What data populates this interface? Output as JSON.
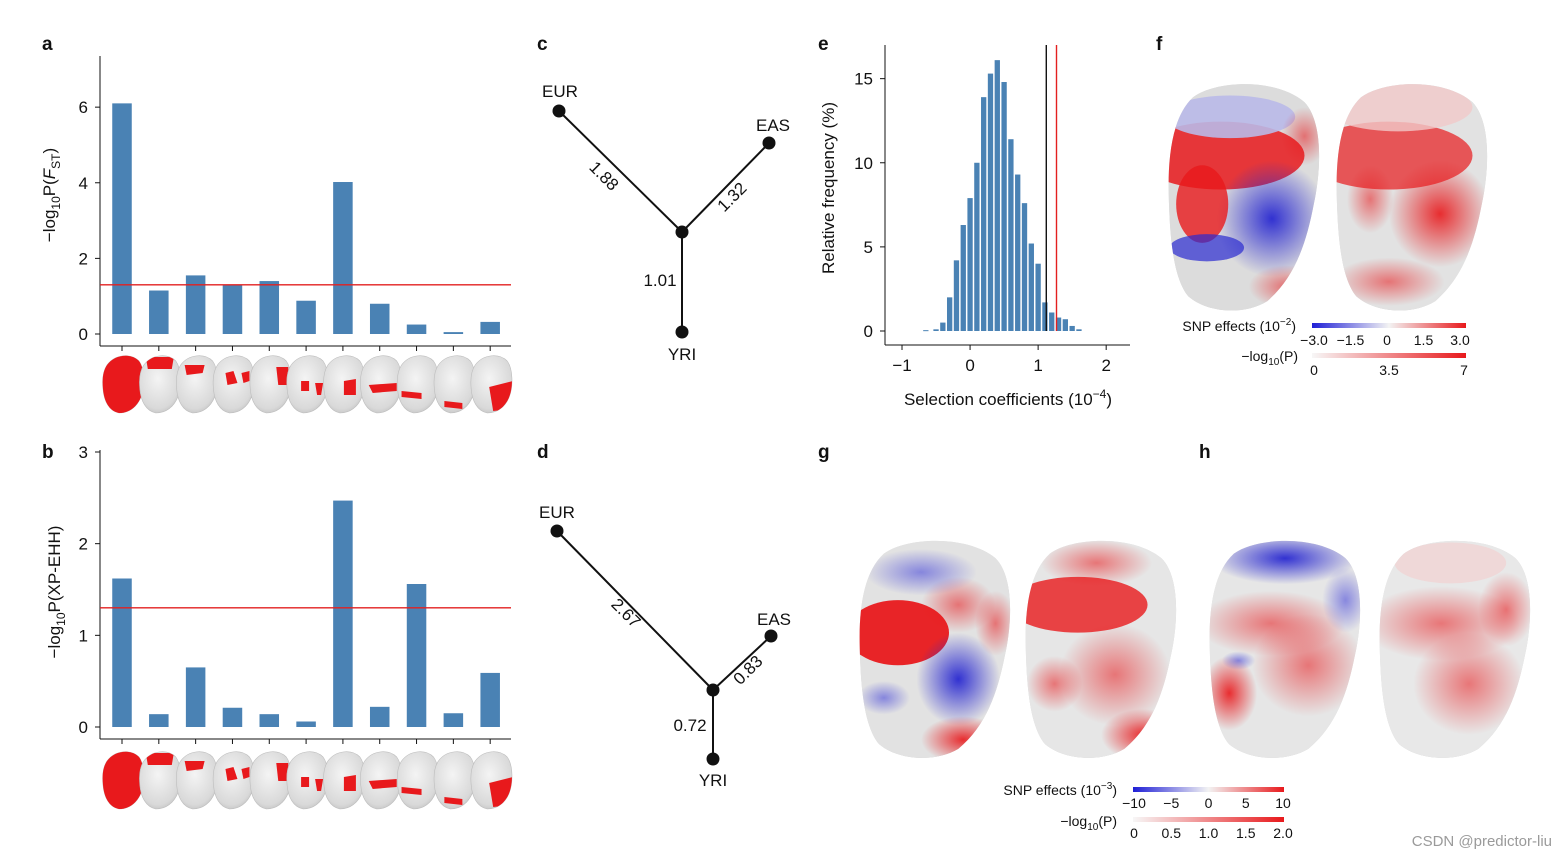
{
  "panels": {
    "a": "a",
    "b": "b",
    "c": "c",
    "d": "d",
    "e": "e",
    "f": "f",
    "g": "g",
    "h": "h"
  },
  "chart_data": [
    {
      "id": "a",
      "type": "bar",
      "ylabel_prefix": "−log",
      "ylabel_sub": "10",
      "ylabel_mid": "P(",
      "ylabel_var": "F",
      "ylabel_varsub": "ST",
      "ylabel_suffix": ")",
      "values": [
        6.1,
        1.15,
        1.55,
        1.3,
        1.4,
        0.88,
        4.02,
        0.8,
        0.25,
        0.05,
        0.32
      ],
      "threshold": 1.3,
      "ylim": [
        0,
        7.3
      ],
      "yticks": [
        "0",
        "2",
        "4",
        "6"
      ],
      "ytick_values": [
        0,
        2,
        4,
        6
      ],
      "bar_color": "#4a82b4",
      "threshold_color": "#e32020"
    },
    {
      "id": "b",
      "type": "bar",
      "ylabel_prefix": "−log",
      "ylabel_sub": "10",
      "ylabel_suffix": "P(XP-EHH)",
      "values": [
        1.62,
        0.14,
        0.65,
        0.21,
        0.14,
        0.06,
        2.47,
        0.22,
        1.56,
        0.15,
        0.59
      ],
      "threshold": 1.3,
      "ylim": [
        0,
        3.0
      ],
      "yticks": [
        "0",
        "1",
        "2",
        "3"
      ],
      "ytick_values": [
        0,
        1,
        2,
        3
      ],
      "bar_color": "#4a82b4",
      "threshold_color": "#e32020"
    },
    {
      "id": "e",
      "type": "bar",
      "xlabel_main": "Selection coefficients (10",
      "xlabel_exp": "−4",
      "xlabel_close": ")",
      "ylabel": "Relative frequency (%)",
      "bins_x": [
        -0.7,
        -0.55,
        -0.45,
        -0.35,
        -0.25,
        -0.15,
        -0.05,
        0.05,
        0.15,
        0.25,
        0.35,
        0.45,
        0.55,
        0.65,
        0.75,
        0.85,
        0.95,
        1.05,
        1.15,
        1.25,
        1.35,
        1.45,
        1.55,
        1.65
      ],
      "values": [
        0.05,
        0.15,
        0.45,
        1.8,
        4.1,
        6.15,
        7.9,
        10.7,
        15.3,
        16.0,
        14.9,
        13.0,
        11.5,
        10.3,
        8.1,
        6.0,
        3.9,
        2.7,
        1.6,
        0.3,
        0,
        0,
        0,
        0
      ],
      "hist_x": [
        -0.65,
        -0.5,
        -0.4,
        -0.3,
        -0.2,
        -0.1,
        0.0,
        0.1,
        0.2,
        0.3,
        0.4,
        0.5,
        0.6,
        0.7,
        0.8,
        0.9,
        1.0,
        1.1,
        1.2,
        1.3,
        1.4,
        1.5,
        1.6
      ],
      "hist_values": [
        0.05,
        0.1,
        0.5,
        2.0,
        4.2,
        6.3,
        7.9,
        10.0,
        13.9,
        15.3,
        16.1,
        14.8,
        11.4,
        9.3,
        7.6,
        5.2,
        4.0,
        1.7,
        1.1,
        0.8,
        0.7,
        0.3,
        0.1
      ],
      "xlim": [
        -1.25,
        2.35
      ],
      "ylim": [
        0,
        17
      ],
      "xticks": [
        "−1",
        "0",
        "1",
        "2"
      ],
      "xtick_values": [
        -1,
        0,
        1,
        2
      ],
      "yticks": [
        "0",
        "5",
        "10",
        "15"
      ],
      "ytick_values": [
        0,
        5,
        10,
        15
      ],
      "vline_black": 1.12,
      "vline_red": 1.27,
      "bar_color": "#4a82b4"
    }
  ],
  "trees": [
    {
      "id": "c",
      "nodes": {
        "EUR": "EUR",
        "EAS": "EAS",
        "YRI": "YRI"
      },
      "branches": {
        "eur": "1.88",
        "eas": "1.32",
        "yri": "1.01"
      }
    },
    {
      "id": "d",
      "nodes": {
        "EUR": "EUR",
        "EAS": "EAS",
        "YRI": "YRI"
      },
      "branches": {
        "eur": "2.67",
        "eas": "0.83",
        "yri": "0.72"
      }
    }
  ],
  "legend_f": {
    "snp_label": "SNP effects (10",
    "snp_exp": "−2",
    "snp_close": ")",
    "snp_ticks": [
      "−3.0",
      "−1.5",
      "0",
      "1.5",
      "3.0"
    ],
    "p_label_prefix": "−log",
    "p_label_sub": "10",
    "p_label_suffix": "(P)",
    "p_ticks": [
      "0",
      "3.5",
      "7"
    ]
  },
  "legend_gh": {
    "snp_label": "SNP effects (10",
    "snp_exp": "−3",
    "snp_close": ")",
    "snp_ticks": [
      "−10",
      "−5",
      "0",
      "5",
      "10"
    ],
    "p_label_prefix": "−log",
    "p_label_sub": "10",
    "p_label_suffix": "(P)",
    "p_ticks": [
      "0",
      "0.5",
      "1.0",
      "1.5",
      "2.0"
    ]
  },
  "watermark": "CSDN @predictor-liu",
  "colors": {
    "blue": "#2222dd",
    "red": "#e8191c",
    "face_base": "#e6e6e6"
  }
}
